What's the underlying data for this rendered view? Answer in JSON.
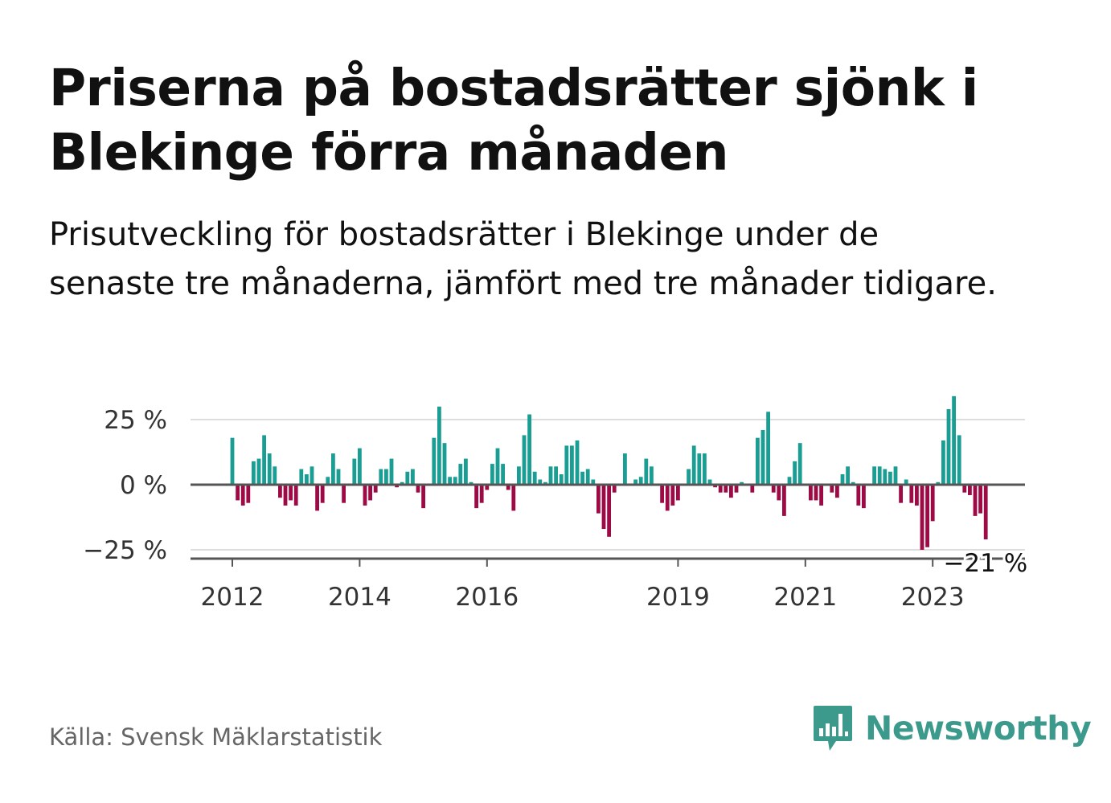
{
  "title": "Priserna på bostadsrätter sjönk i Blekinge förra månaden",
  "subtitle": "Prisutveckling för bostadsrätter i Blekinge under de senaste tre månaderna, jämfört med tre månader tidigare.",
  "source": "Källa: Svensk Mäklarstatistik",
  "brand": {
    "name": "Newsworthy",
    "icon": "newsworthy-logo-icon",
    "color": "#3c9a8c"
  },
  "colors": {
    "positive": "#1a9e94",
    "negative": "#9e0a45",
    "grid": "#dddddd",
    "axis": "#555555"
  },
  "chart_data": {
    "type": "bar",
    "x_start": "2012-01",
    "x_ticks": [
      "2012",
      "2014",
      "2016",
      "2019",
      "2021",
      "2023"
    ],
    "y_ticks": [
      "25 %",
      "0 %",
      "−25 %"
    ],
    "ylim": [
      -28,
      37
    ],
    "grid": true,
    "last_label": "−21 %",
    "values": [
      18,
      -6,
      -8,
      -7,
      9,
      10,
      19,
      12,
      7,
      -5,
      -8,
      -6,
      -8,
      6,
      4,
      7,
      -10,
      -7,
      3,
      12,
      6,
      -7,
      0,
      10,
      14,
      -8,
      -6,
      -3,
      6,
      6,
      10,
      -1,
      1,
      5,
      6,
      -3,
      -9,
      0,
      18,
      30,
      16,
      3,
      3,
      8,
      10,
      1,
      -9,
      -7,
      -2,
      8,
      14,
      8,
      -2,
      -10,
      7,
      19,
      27,
      5,
      2,
      1,
      7,
      7,
      4,
      15,
      15,
      17,
      5,
      6,
      2,
      -11,
      -17,
      -20,
      -3,
      0,
      12,
      0,
      2,
      3,
      10,
      7,
      0,
      -7,
      -10,
      -8,
      -6,
      0,
      6,
      15,
      12,
      12,
      2,
      -1,
      -3,
      -3,
      -5,
      -3,
      1,
      0,
      -3,
      18,
      21,
      28,
      -3,
      -6,
      -12,
      3,
      9,
      16,
      0,
      -6,
      -6,
      -8,
      0,
      -3,
      -5,
      4,
      7,
      1,
      -8,
      -9,
      0,
      7,
      7,
      6,
      5,
      7,
      -7,
      2,
      -7,
      -8,
      -25,
      -24,
      -14,
      1,
      17,
      29,
      34,
      19,
      -3,
      -4,
      -12,
      -11,
      -21
    ]
  }
}
